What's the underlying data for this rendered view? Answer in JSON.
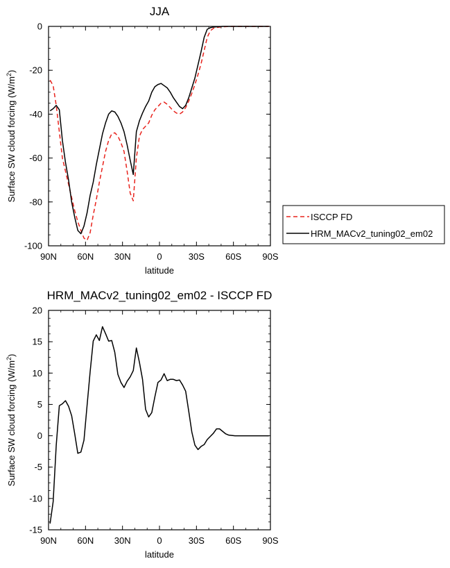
{
  "chart_data": [
    {
      "type": "line",
      "title": "JJA",
      "xlabel": "latitude",
      "ylabel": "Surface SW cloud forcing (W/m",
      "ylabel_sup": "2",
      "ylabel_tail": ")",
      "xlim": [
        90,
        -90
      ],
      "ylim": [
        -100,
        0
      ],
      "xticks": [
        90,
        60,
        30,
        0,
        -30,
        -60,
        -90
      ],
      "xtick_labels": [
        "90N",
        "60N",
        "30N",
        "0",
        "30S",
        "60S",
        "90S"
      ],
      "yticks": [
        0,
        -20,
        -40,
        -60,
        -80,
        -100
      ],
      "ytick_labels": [
        "0",
        "-20",
        "-40",
        "-60",
        "-80",
        "-100"
      ],
      "grid": false,
      "legend": "right",
      "series": [
        {
          "name": "ISCCP FD",
          "color": "#e8221c",
          "dash": "dashed",
          "x": [
            88.75,
            86.25,
            83.75,
            81.25,
            78.75,
            76.25,
            73.75,
            71.25,
            68.75,
            66.25,
            63.75,
            61.25,
            58.75,
            56.25,
            53.75,
            51.25,
            48.75,
            46.25,
            43.75,
            41.25,
            38.75,
            36.25,
            33.75,
            31.25,
            28.75,
            26.25,
            23.75,
            21.25,
            18.75,
            16.25,
            13.75,
            11.25,
            8.75,
            6.25,
            3.75,
            1.25,
            -1.25,
            -3.75,
            -6.25,
            -8.75,
            -11.25,
            -13.75,
            -16.25,
            -18.75,
            -21.25,
            -23.75,
            -26.25,
            -28.75,
            -31.25,
            -33.75,
            -36.25,
            -38.75,
            -41.25,
            -43.75,
            -46.25,
            -48.75,
            -51.25,
            -53.75,
            -56.25,
            -58.75,
            -61.25,
            -63.75,
            -66.25,
            -68.75,
            -71.25,
            -73.75,
            -76.25,
            -78.75,
            -81.25,
            -83.75,
            -86.25,
            -88.75
          ],
          "values": [
            -24.5,
            -27,
            -36,
            -48,
            -60,
            -66,
            -72,
            -78,
            -84,
            -89,
            -93,
            -96.5,
            -97.5,
            -94,
            -86,
            -79,
            -71,
            -64,
            -57,
            -52,
            -49,
            -48.5,
            -50,
            -53,
            -57,
            -66,
            -76,
            -79.5,
            -60,
            -50,
            -47,
            -45.5,
            -44,
            -40.5,
            -38,
            -36.5,
            -35,
            -34.5,
            -35.5,
            -37,
            -38.5,
            -39.5,
            -40,
            -39,
            -37,
            -34,
            -30.5,
            -26.5,
            -22,
            -17,
            -11,
            -5,
            -2,
            -0.9,
            -0.5,
            -0.3,
            -0.2,
            -0.1,
            0,
            0,
            0,
            0,
            0,
            0,
            0,
            0,
            0,
            0,
            0,
            0,
            0,
            0
          ]
        },
        {
          "name": "HRM_MACv2_tuning02_em02",
          "color": "#000000",
          "dash": "solid",
          "x": [
            88.75,
            86.25,
            83.75,
            81.25,
            78.75,
            76.25,
            73.75,
            71.25,
            68.75,
            66.25,
            63.75,
            61.25,
            58.75,
            56.25,
            53.75,
            51.25,
            48.75,
            46.25,
            43.75,
            41.25,
            38.75,
            36.25,
            33.75,
            31.25,
            28.75,
            26.25,
            23.75,
            21.25,
            18.75,
            16.25,
            13.75,
            11.25,
            8.75,
            6.25,
            3.75,
            1.25,
            -1.25,
            -3.75,
            -6.25,
            -8.75,
            -11.25,
            -13.75,
            -16.25,
            -18.75,
            -21.25,
            -23.75,
            -26.25,
            -28.75,
            -31.25,
            -33.75,
            -36.25,
            -38.75,
            -41.25,
            -43.75,
            -46.25,
            -48.75,
            -51.25,
            -53.75,
            -56.25,
            -58.75,
            -61.25,
            -63.75,
            -66.25,
            -68.75,
            -71.25,
            -73.75,
            -76.25,
            -78.75,
            -81.25,
            -83.75,
            -86.25,
            -88.75
          ],
          "values": [
            -38.5,
            -37.5,
            -36,
            -38,
            -52,
            -62,
            -70,
            -80,
            -87,
            -93,
            -94.5,
            -91,
            -85,
            -77,
            -71,
            -63,
            -56,
            -49,
            -44,
            -40,
            -38.5,
            -39,
            -41,
            -44,
            -48,
            -54,
            -61,
            -67.5,
            -48,
            -43,
            -39.5,
            -36.5,
            -34,
            -30,
            -27.5,
            -26.5,
            -26,
            -27,
            -28,
            -30,
            -32.5,
            -34.5,
            -36.5,
            -37.5,
            -36,
            -32.5,
            -28,
            -23.5,
            -17.5,
            -11.5,
            -5,
            -1.3,
            -0.6,
            -0.3,
            -0.2,
            -0.1,
            0,
            0,
            0,
            0,
            0,
            0,
            0,
            0,
            0,
            0,
            0,
            0,
            0,
            0,
            0,
            0
          ]
        }
      ]
    },
    {
      "type": "line",
      "title": "HRM_MACv2_tuning02_em02 - ISCCP FD",
      "xlabel": "latitude",
      "ylabel": "Surface SW cloud forcing (W/m",
      "ylabel_sup": "2",
      "ylabel_tail": ")",
      "xlim": [
        90,
        -90
      ],
      "ylim": [
        -15,
        20
      ],
      "xticks": [
        90,
        60,
        30,
        0,
        -30,
        -60,
        -90
      ],
      "xtick_labels": [
        "90N",
        "60N",
        "30N",
        "0",
        "30S",
        "60S",
        "90S"
      ],
      "yticks": [
        20,
        15,
        10,
        5,
        0,
        -5,
        -10,
        -15
      ],
      "ytick_labels": [
        "20",
        "15",
        "10",
        "5",
        "0",
        "-5",
        "-10",
        "-15"
      ],
      "grid": false,
      "series": [
        {
          "name": "",
          "color": "#000000",
          "dash": "solid",
          "x": [
            88.75,
            86.25,
            83.75,
            81.25,
            78.75,
            76.25,
            73.75,
            71.25,
            68.75,
            66.25,
            63.75,
            61.25,
            58.75,
            56.25,
            53.75,
            51.25,
            48.75,
            46.25,
            43.75,
            41.25,
            38.75,
            36.25,
            33.75,
            31.25,
            28.75,
            26.25,
            23.75,
            21.25,
            18.75,
            16.25,
            13.75,
            11.25,
            8.75,
            6.25,
            3.75,
            1.25,
            -1.25,
            -3.75,
            -6.25,
            -8.75,
            -11.25,
            -13.75,
            -16.25,
            -18.75,
            -21.25,
            -23.75,
            -26.25,
            -28.75,
            -31.25,
            -33.75,
            -36.25,
            -38.75,
            -41.25,
            -43.75,
            -46.25,
            -48.75,
            -51.25,
            -53.75,
            -56.25,
            -58.75,
            -61.25,
            -63.75,
            -66.25,
            -68.75,
            -71.25,
            -73.75,
            -76.25,
            -78.75,
            -81.25,
            -83.75,
            -86.25,
            -88.75
          ],
          "values": [
            -14,
            -10.5,
            -1.5,
            4.8,
            5.1,
            5.6,
            4.7,
            3.2,
            0.3,
            -2.8,
            -2.6,
            -0.7,
            4.8,
            10.2,
            15.1,
            16.1,
            15.2,
            17.4,
            16.3,
            15.1,
            15.2,
            13.3,
            9.8,
            8.5,
            7.7,
            8.7,
            9.4,
            10.4,
            14,
            11.7,
            9,
            4.2,
            3,
            3.7,
            6.2,
            8.5,
            8.9,
            9.9,
            8.8,
            9,
            9,
            8.8,
            8.9,
            8.1,
            7.1,
            3.9,
            0.6,
            -1.5,
            -2.2,
            -1.7,
            -1.4,
            -0.6,
            -0.1,
            0.4,
            1.1,
            1.1,
            0.7,
            0.3,
            0.1,
            0.05,
            0,
            0,
            0,
            0,
            0,
            0,
            0,
            0,
            0,
            0,
            0,
            0
          ]
        }
      ]
    }
  ]
}
